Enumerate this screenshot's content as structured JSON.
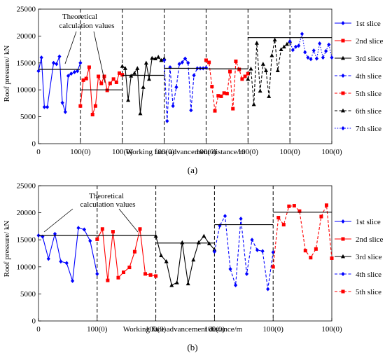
{
  "chart_data": [
    {
      "type": "line",
      "panel_label": "(a)",
      "xlabel": "Working face advancement distance/m",
      "ylabel": "Roof pressure/ kN",
      "ylim": [
        0,
        25000
      ],
      "yticks": [
        "0",
        "5000",
        "10000",
        "15000",
        "20000",
        "25000"
      ],
      "xticks": [
        "0",
        "100(0)",
        "100(0)",
        "100(0)",
        "100(0)",
        "100(0)",
        "100(0)",
        "100(0)"
      ],
      "legend_position": "right",
      "annotation": "Theoretical calculation values",
      "grid": false,
      "series": [
        {
          "name": "1st slice",
          "color": "#0000ff",
          "style": "solid",
          "marker": "diamond",
          "x": [
            0,
            7,
            14,
            21,
            36,
            43,
            50,
            57,
            64,
            71,
            78,
            86,
            93,
            100
          ],
          "y": [
            13500,
            16000,
            6800,
            6800,
            15000,
            14800,
            16200,
            7600,
            5900,
            12600,
            13000,
            13300,
            13500,
            15000
          ],
          "theoretical": 13800
        },
        {
          "name": "2nd slice",
          "color": "#ff0000",
          "style": "solid",
          "marker": "square",
          "x": [
            0,
            7,
            14,
            21,
            29,
            36,
            43,
            50,
            57,
            64,
            71,
            79,
            86,
            93,
            100
          ],
          "y": [
            7000,
            11800,
            12100,
            14200,
            5400,
            7000,
            12500,
            11200,
            12500,
            9900,
            11200,
            12000,
            11400,
            13100,
            12800
          ],
          "theoretical": 10000
        },
        {
          "name": "3rd slice",
          "color": "#000000",
          "style": "solid",
          "marker": "triangle",
          "x": [
            0,
            7,
            14,
            21,
            29,
            36,
            43,
            50,
            57,
            64,
            71,
            79,
            86,
            93,
            100
          ],
          "y": [
            14400,
            14000,
            8100,
            12600,
            13100,
            14000,
            5600,
            10500,
            15000,
            12000,
            15900,
            15800,
            16100,
            15500,
            15800
          ],
          "theoretical": 12700
        },
        {
          "name": "4th slice",
          "color": "#0000ff",
          "style": "dashed",
          "marker": "diamond",
          "x": [
            0,
            7,
            14,
            21,
            29,
            36,
            43,
            50,
            57,
            64,
            71,
            79,
            86,
            93,
            100
          ],
          "y": [
            15500,
            4200,
            14200,
            7000,
            10500,
            14800,
            15100,
            15800,
            15000,
            6200,
            12700,
            14000,
            14000,
            14000,
            14100
          ],
          "theoretical": 14000
        },
        {
          "name": "5th slice",
          "color": "#ff0000",
          "style": "dashed",
          "marker": "square",
          "x": [
            0,
            7,
            14,
            21,
            29,
            36,
            43,
            50,
            57,
            64,
            71,
            79,
            86,
            93,
            100
          ],
          "y": [
            15500,
            15100,
            10600,
            6100,
            8900,
            8800,
            9400,
            9300,
            13400,
            6500,
            15300,
            13800,
            12000,
            12500,
            13000
          ],
          "theoretical": 13900
        },
        {
          "name": "6th slice",
          "color": "#000000",
          "style": "dashed",
          "marker": "triangle",
          "x": [
            0,
            7,
            14,
            21,
            29,
            36,
            43,
            50,
            57,
            64,
            71,
            79,
            86,
            93,
            100
          ],
          "y": [
            12000,
            13900,
            7300,
            18700,
            9800,
            14800,
            13600,
            8800,
            16400,
            19300,
            13600,
            17500,
            18000,
            18500,
            19000
          ],
          "theoretical": 19700
        },
        {
          "name": "7th slice",
          "color": "#0000ff",
          "style": "dotted",
          "marker": "diamond",
          "x": [
            0,
            7,
            14,
            21,
            29,
            36,
            43,
            50,
            57,
            64,
            71,
            79,
            86,
            93,
            100
          ],
          "y": [
            19000,
            17400,
            18000,
            18200,
            20400,
            17000,
            16000,
            15700,
            17300,
            15800,
            18600,
            16000,
            17200,
            18400,
            16000
          ],
          "theoretical": 19700
        }
      ]
    },
    {
      "type": "line",
      "panel_label": "(b)",
      "xlabel": "Working face advancement distance/m",
      "ylabel": "Roof pressure/ kN",
      "ylim": [
        0,
        25000
      ],
      "yticks": [
        "0",
        "5000",
        "10000",
        "15000",
        "20000",
        "25000"
      ],
      "xticks": [
        "0",
        "100(0)",
        "100(0)",
        "100(0)",
        "100(0)",
        "100(0)"
      ],
      "legend_position": "right",
      "annotation": "Theoretical calculation values",
      "grid": false,
      "series": [
        {
          "name": "1st slice",
          "color": "#0000ff",
          "style": "solid",
          "marker": "diamond",
          "x": [
            0,
            7,
            17,
            28,
            38,
            48,
            58,
            68,
            78,
            88,
            100
          ],
          "y": [
            15800,
            15600,
            11500,
            16100,
            11000,
            10700,
            7400,
            17200,
            16900,
            14800,
            8700
          ],
          "theoretical": 15800
        },
        {
          "name": "2nd slice",
          "color": "#ff0000",
          "style": "solid",
          "marker": "square",
          "x": [
            0,
            9,
            18,
            27,
            36,
            45,
            55,
            64,
            73,
            82,
            91,
            100
          ],
          "y": [
            15100,
            17000,
            7500,
            16500,
            8000,
            9000,
            9900,
            12800,
            17000,
            8700,
            8500,
            8300
          ],
          "theoretical": 15800
        },
        {
          "name": "3rd slice",
          "color": "#000000",
          "style": "solid",
          "marker": "triangle",
          "x": [
            0,
            9,
            18,
            27,
            36,
            45,
            55,
            64,
            73,
            82,
            91,
            100
          ],
          "y": [
            15700,
            12100,
            11000,
            6600,
            7100,
            14500,
            6900,
            11300,
            14500,
            15700,
            14300,
            13200
          ],
          "theoretical": 14400
        },
        {
          "name": "4th slice",
          "color": "#0000ff",
          "style": "dashed",
          "marker": "diamond",
          "x": [
            0,
            9,
            18,
            27,
            36,
            45,
            55,
            64,
            73,
            82,
            91,
            100
          ],
          "y": [
            12800,
            17600,
            19400,
            9600,
            6600,
            18900,
            8700,
            15000,
            13100,
            12900,
            5900,
            12700
          ],
          "theoretical": 17800
        },
        {
          "name": "5th slice",
          "color": "#ff0000",
          "style": "dashed",
          "marker": "square",
          "x": [
            0,
            9,
            18,
            27,
            36,
            45,
            55,
            64,
            73,
            82,
            91,
            100
          ],
          "y": [
            10000,
            19100,
            17800,
            21200,
            21300,
            20300,
            13000,
            11700,
            13300,
            19300,
            21400,
            11600
          ],
          "theoretical": 20100
        }
      ]
    }
  ]
}
